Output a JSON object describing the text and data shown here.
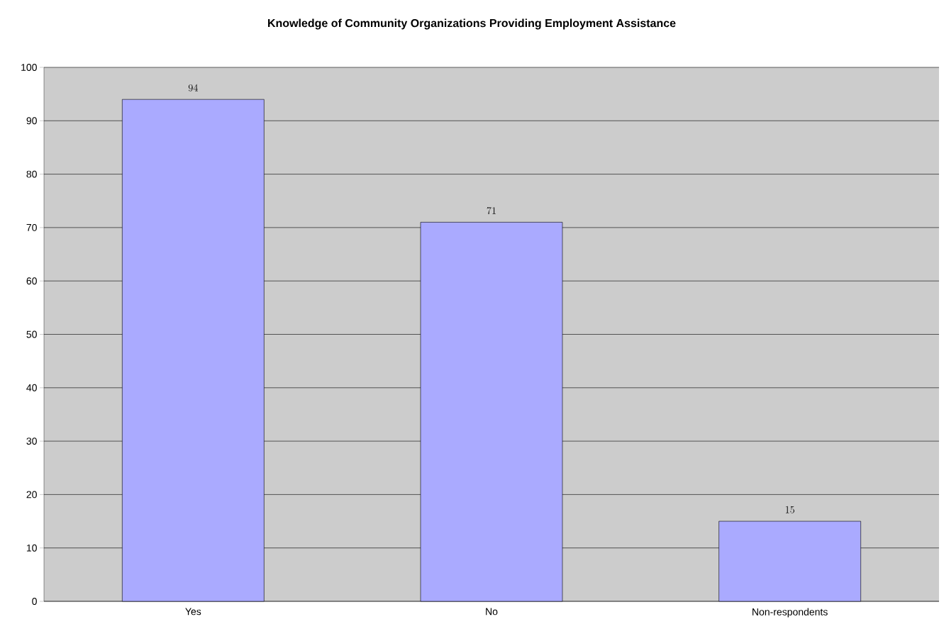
{
  "chart_data": {
    "type": "bar",
    "title": "Knowledge of Community Organizations Providing Employment Assistance",
    "categories": [
      "Yes",
      "No",
      "Non-respondents"
    ],
    "values": [
      94,
      71,
      15
    ],
    "color": "#aaaaff",
    "ylim": [
      0,
      100
    ],
    "yticks": [
      0,
      10,
      20,
      30,
      40,
      50,
      60,
      70,
      80,
      90,
      100
    ],
    "grid": "y",
    "data_labels": true
  }
}
